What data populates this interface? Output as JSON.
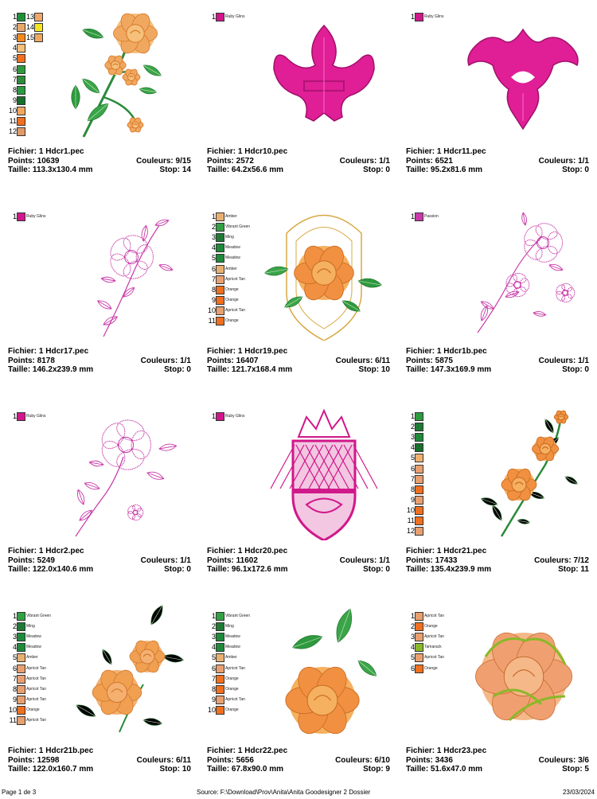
{
  "items": [
    {
      "file": "Fichier: 1 Hdcr1.pec",
      "points": "Points: 10639",
      "colors": "Couleurs: 9/15",
      "size": "Taille: 113.3x130.4 mm",
      "stop": "Stop: 14",
      "art": "rose-spray",
      "swatches": [
        [
          "1",
          "#1f8f3a",
          ""
        ],
        [
          "2",
          "#e8a86a",
          ""
        ],
        [
          "3",
          "#f08a1e",
          ""
        ],
        [
          "4",
          "#f5c07a",
          ""
        ],
        [
          "5",
          "#f07020",
          ""
        ],
        [
          "6",
          "#2e9a3e",
          ""
        ],
        [
          "7",
          "#2f8a3a",
          ""
        ],
        [
          "8",
          "#2a9b42",
          ""
        ],
        [
          "9",
          "#186e2a",
          ""
        ],
        [
          "10",
          "#f0a860",
          ""
        ],
        [
          "11",
          "#f07020",
          ""
        ],
        [
          "12",
          "#e09a68",
          ""
        ],
        [
          "13",
          "#f0a86a",
          ""
        ],
        [
          "14",
          "#f5e61e",
          ""
        ],
        [
          "15",
          "#f0a860",
          ""
        ]
      ]
    },
    {
      "file": "Fichier: 1 Hdcr10.pec",
      "points": "Points: 2572",
      "colors": "Couleurs: 1/1",
      "size": "Taille: 64.2x56.6 mm",
      "stop": "Stop: 0",
      "art": "fleur-de-lis",
      "swatches": [
        [
          "1",
          "#d0188a",
          "Ruby Glins"
        ]
      ]
    },
    {
      "file": "Fichier: 1 Hdcr11.pec",
      "points": "Points: 6521",
      "colors": "Couleurs: 1/1",
      "size": "Taille: 95.2x81.6 mm",
      "stop": "Stop: 0",
      "art": "damask",
      "swatches": [
        [
          "1",
          "#d0188a",
          "Ruby Glins"
        ]
      ]
    },
    {
      "file": "Fichier: 1 Hdcr17.pec",
      "points": "Points: 8178",
      "colors": "Couleurs: 1/1",
      "size": "Taille: 146.2x239.9 mm",
      "stop": "Stop: 0",
      "art": "outline-vine",
      "swatches": [
        [
          "1",
          "#d0188a",
          "Ruby Glins"
        ]
      ]
    },
    {
      "file": "Fichier: 1 Hdcr19.pec",
      "points": "Points: 16407",
      "colors": "Couleurs: 6/11",
      "size": "Taille: 121.7x168.4 mm",
      "stop": "Stop: 10",
      "art": "shield-rose",
      "swatches": [
        [
          "1",
          "#e8b070",
          "Amber"
        ],
        [
          "2",
          "#33a043",
          "Vibrant Green"
        ],
        [
          "3",
          "#1f7a35",
          "Ming"
        ],
        [
          "4",
          "#1e8a3b",
          "Meadow"
        ],
        [
          "5",
          "#1e8a3b",
          "Meadow"
        ],
        [
          "6",
          "#e8b070",
          "Amber"
        ],
        [
          "7",
          "#e8a070",
          "Apricot Tan"
        ],
        [
          "8",
          "#f07020",
          "Orange"
        ],
        [
          "9",
          "#f07020",
          "Orange"
        ],
        [
          "10",
          "#e8a070",
          "Apricot Tan"
        ],
        [
          "11",
          "#f07020",
          "Orange"
        ]
      ]
    },
    {
      "file": "Fichier: 1 Hdcr1b.pec",
      "points": "Points: 5875",
      "colors": "Couleurs: 1/1",
      "size": "Taille: 147.3x169.9 mm",
      "stop": "Stop: 0",
      "art": "outline-spray",
      "swatches": [
        [
          "1",
          "#c83aa8",
          "Passion"
        ]
      ]
    },
    {
      "file": "Fichier: 1 Hdcr2.pec",
      "points": "Points: 5249",
      "colors": "Couleurs: 1/1",
      "size": "Taille: 122.0x140.6 mm",
      "stop": "Stop: 0",
      "art": "outline-rose",
      "swatches": [
        [
          "1",
          "#d0188a",
          "Ruby Glins"
        ]
      ]
    },
    {
      "file": "Fichier: 1 Hdcr20.pec",
      "points": "Points: 11602",
      "colors": "Couleurs: 1/1",
      "size": "Taille: 96.1x172.6 mm",
      "stop": "Stop: 0",
      "art": "crown-shield",
      "swatches": [
        [
          "1",
          "#d0188a",
          "Ruby Glins"
        ]
      ]
    },
    {
      "file": "Fichier: 1 Hdcr21.pec",
      "points": "Points: 17433",
      "colors": "Couleurs: 7/12",
      "size": "Taille: 135.4x239.9 mm",
      "stop": "Stop: 11",
      "art": "rose-vine",
      "swatches": [
        [
          "1",
          "#2e9a3e",
          ""
        ],
        [
          "2",
          "#1f7a35",
          ""
        ],
        [
          "3",
          "#1e8a3b",
          ""
        ],
        [
          "4",
          "#186e2a",
          ""
        ],
        [
          "5",
          "#f0b070",
          ""
        ],
        [
          "6",
          "#e8a070",
          ""
        ],
        [
          "7",
          "#e8a070",
          ""
        ],
        [
          "8",
          "#f07020",
          ""
        ],
        [
          "9",
          "#e8a070",
          ""
        ],
        [
          "10",
          "#f07020",
          ""
        ],
        [
          "11",
          "#f07020",
          ""
        ],
        [
          "12",
          "#e8a070",
          ""
        ]
      ]
    },
    {
      "file": "Fichier: 1 Hdcr21b.pec",
      "points": "Points: 12598",
      "colors": "Couleurs: 6/11",
      "size": "Taille: 122.0x160.7 mm",
      "stop": "Stop: 10",
      "art": "two-roses",
      "swatches": [
        [
          "1",
          "#33a043",
          "Vibrant Green"
        ],
        [
          "2",
          "#1f7a35",
          "Ming"
        ],
        [
          "3",
          "#1e8a3b",
          "Meadow"
        ],
        [
          "4",
          "#1e8a3b",
          "Meadow"
        ],
        [
          "5",
          "#e8b070",
          "Amber"
        ],
        [
          "6",
          "#e8a070",
          "Apricot Tan"
        ],
        [
          "7",
          "#e8a070",
          "Apricot Tan"
        ],
        [
          "8",
          "#e8a070",
          "Apricot Tan"
        ],
        [
          "9",
          "#e8a070",
          "Apricot Tan"
        ],
        [
          "10",
          "#f07020",
          "Orange"
        ],
        [
          "11",
          "#e8a070",
          "Apricot Tan"
        ]
      ]
    },
    {
      "file": "Fichier: 1 Hdcr22.pec",
      "points": "Points: 5656",
      "colors": "Couleurs: 6/10",
      "size": "Taille: 67.8x90.0 mm",
      "stop": "Stop: 9",
      "art": "single-rose",
      "swatches": [
        [
          "1",
          "#33a043",
          "Vibrant Green"
        ],
        [
          "2",
          "#1f7a35",
          "Ming"
        ],
        [
          "3",
          "#1e8a3b",
          "Meadow"
        ],
        [
          "4",
          "#1e8a3b",
          "Meadow"
        ],
        [
          "5",
          "#e8b070",
          "Amber"
        ],
        [
          "6",
          "#e8a070",
          "Apricot Tan"
        ],
        [
          "7",
          "#f07020",
          "Orange"
        ],
        [
          "8",
          "#f07020",
          "Orange"
        ],
        [
          "9",
          "#e8a070",
          "Apricot Tan"
        ],
        [
          "10",
          "#f07020",
          "Orange"
        ]
      ]
    },
    {
      "file": "Fichier: 1 Hdcr23.pec",
      "points": "Points: 3436",
      "colors": "Couleurs: 3/6",
      "size": "Taille: 51.6x47.0 mm",
      "stop": "Stop: 5",
      "art": "big-rose",
      "swatches": [
        [
          "1",
          "#e8a070",
          "Apricot Tan"
        ],
        [
          "2",
          "#f07020",
          "Orange"
        ],
        [
          "3",
          "#e8a070",
          "Apricot Tan"
        ],
        [
          "4",
          "#8ab82a",
          "Tamarack"
        ],
        [
          "5",
          "#e8a070",
          "Apricot Tan"
        ],
        [
          "6",
          "#f07020",
          "Orange"
        ]
      ]
    }
  ],
  "footer": {
    "page": "Page 1 de 3",
    "source": "Source: F:\\Download\\Prov\\Anita\\Anita Goodesigner 2 Dossier",
    "date": "23/03/2024"
  }
}
